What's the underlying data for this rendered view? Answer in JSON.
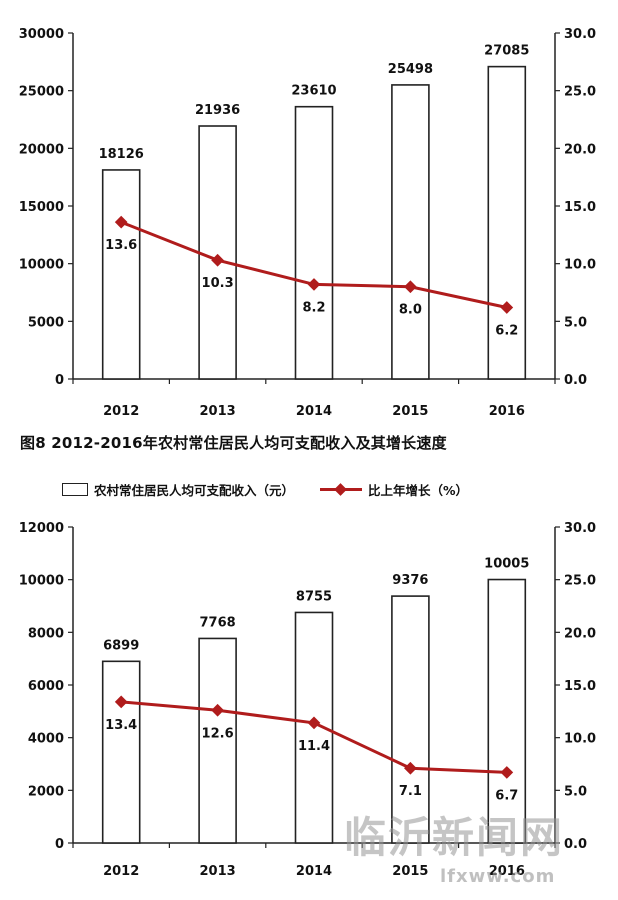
{
  "caption": "图8  2012-2016年农村常住居民人均可支配收入及其增长速度",
  "legend": {
    "bar_label": "农村常住居民人均可支配收入（元）",
    "line_label": "比上年增长（%）"
  },
  "colors": {
    "bar_fill": "#ffffff",
    "bar_stroke": "#222222",
    "line": "#b01c1c",
    "axis": "#222222"
  },
  "watermark": {
    "text": "临沂新闻网",
    "url": "lfxww.com"
  },
  "chart_data": [
    {
      "type": "bar",
      "categories": [
        "2012",
        "2013",
        "2014",
        "2015",
        "2016"
      ],
      "series": [
        {
          "values": [
            18126,
            21936,
            23610,
            25498,
            27085
          ],
          "axis": "left",
          "kind": "bar"
        },
        {
          "values": [
            13.6,
            10.3,
            8.2,
            8.0,
            6.2
          ],
          "axis": "right",
          "kind": "line"
        }
      ],
      "bar_labels": [
        "18126",
        "21936",
        "23610",
        "25498",
        "27085"
      ],
      "line_labels": [
        "13.6",
        "10.3",
        "8.2",
        "8.0",
        "6.2"
      ],
      "ylim": [
        0,
        30000
      ],
      "y2lim": [
        0,
        30
      ],
      "yticks": [
        "0",
        "5000",
        "10000",
        "15000",
        "20000",
        "25000",
        "30000"
      ],
      "y2ticks": [
        "0.0",
        "5.0",
        "10.0",
        "15.0",
        "20.0",
        "25.0",
        "30.0"
      ],
      "grid": false
    },
    {
      "type": "bar",
      "categories": [
        "2012",
        "2013",
        "2014",
        "2015",
        "2016"
      ],
      "series": [
        {
          "values": [
            6899,
            7768,
            8755,
            9376,
            10005
          ],
          "axis": "left",
          "kind": "bar"
        },
        {
          "values": [
            13.4,
            12.6,
            11.4,
            7.1,
            6.7
          ],
          "axis": "right",
          "kind": "line"
        }
      ],
      "bar_labels": [
        "6899",
        "7768",
        "8755",
        "9376",
        "10005"
      ],
      "line_labels": [
        "13.4",
        "12.6",
        "11.4",
        "7.1",
        "6.7"
      ],
      "ylim": [
        0,
        12000
      ],
      "y2lim": [
        0,
        30
      ],
      "yticks": [
        "0",
        "2000",
        "4000",
        "6000",
        "8000",
        "10000",
        "12000"
      ],
      "y2ticks": [
        "0.0",
        "5.0",
        "10.0",
        "15.0",
        "20.0",
        "25.0",
        "30.0"
      ],
      "grid": false
    }
  ]
}
